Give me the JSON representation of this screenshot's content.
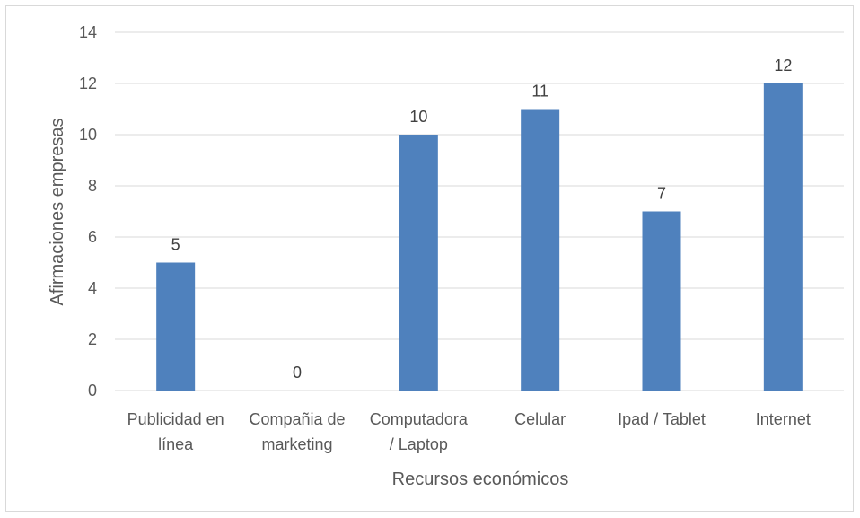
{
  "chart_data": {
    "type": "bar",
    "categories": [
      [
        "Publicidad en",
        "línea"
      ],
      [
        "Compañia de",
        "marketing"
      ],
      [
        "Computadora",
        "/ Laptop"
      ],
      [
        "Celular"
      ],
      [
        "Ipad / Tablet"
      ],
      [
        "Internet"
      ]
    ],
    "values": [
      5,
      0,
      10,
      11,
      7,
      12
    ],
    "title": "",
    "xlabel": "Recursos económicos",
    "ylabel": "Afirmaciones empresas",
    "ylim": [
      0,
      14
    ],
    "yticks": [
      0,
      2,
      4,
      6,
      8,
      10,
      12,
      14
    ],
    "grid": true,
    "bar_color": "#4f81bd",
    "grid_color": "#d9d9d9"
  }
}
